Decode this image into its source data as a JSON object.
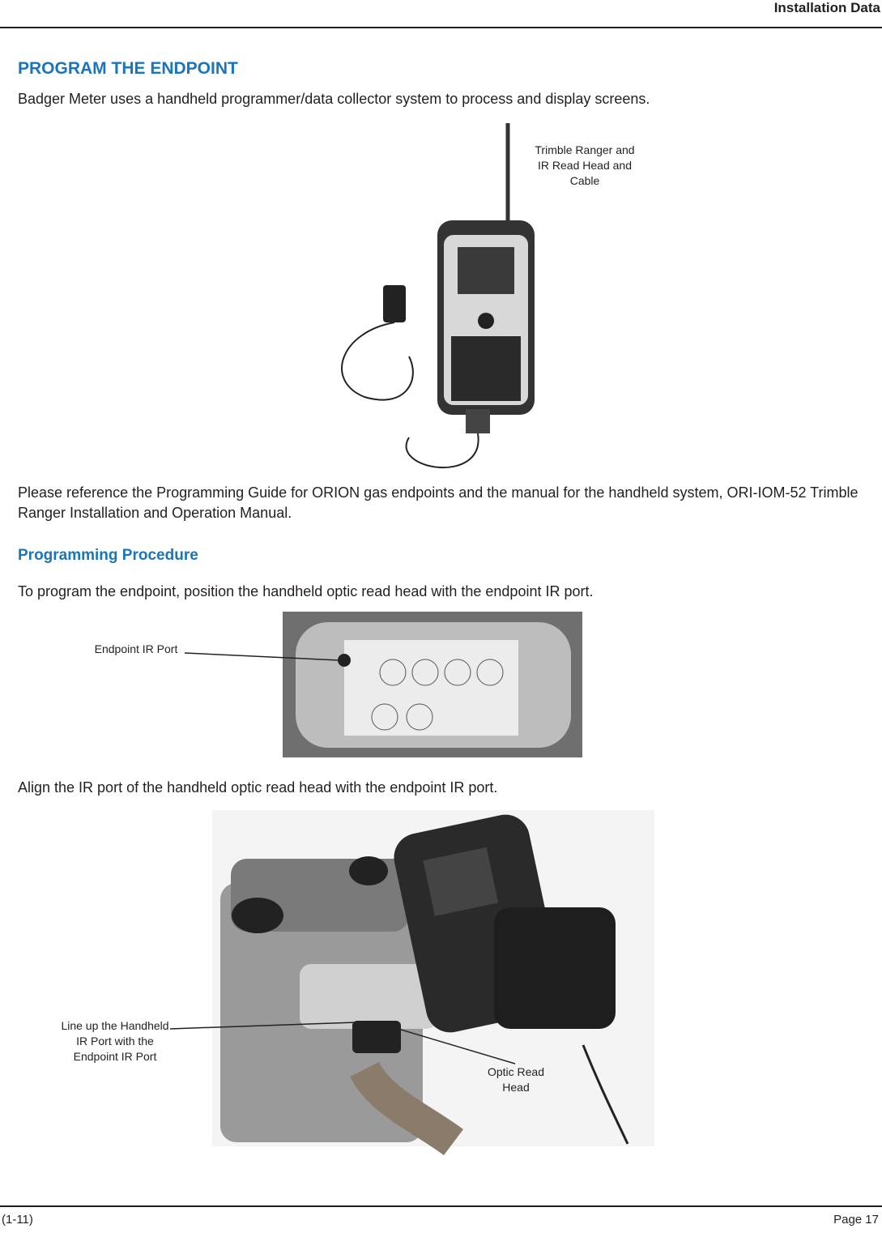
{
  "header": {
    "title": "Installation Data"
  },
  "section": {
    "heading": "PROGRAM THE ENDPOINT",
    "intro": "Badger Meter uses a handheld programmer/data collector system to process and display screens.",
    "figure_1": {
      "callout": "Trimble Ranger and IR Read Head and Cable"
    },
    "reference": "Please reference the Programming Guide for ORION gas endpoints and the manual for the handheld system, ORI-IOM-52 Trimble Ranger Installation and Operation Manual.",
    "subheading": "Programming Procedure",
    "step_1": "To program the endpoint, position the handheld optic read head with the endpoint IR port.",
    "figure_2": {
      "callout": "Endpoint IR Port"
    },
    "step_2": "Align the IR port of the handheld optic read head with the endpoint IR port.",
    "figure_3": {
      "callouts": [
        "Line up the Handheld IR Port with the Endpoint IR Port",
        "Optic Read Head"
      ]
    }
  },
  "footer": {
    "left": "(1-11)",
    "right": "Page 17"
  }
}
